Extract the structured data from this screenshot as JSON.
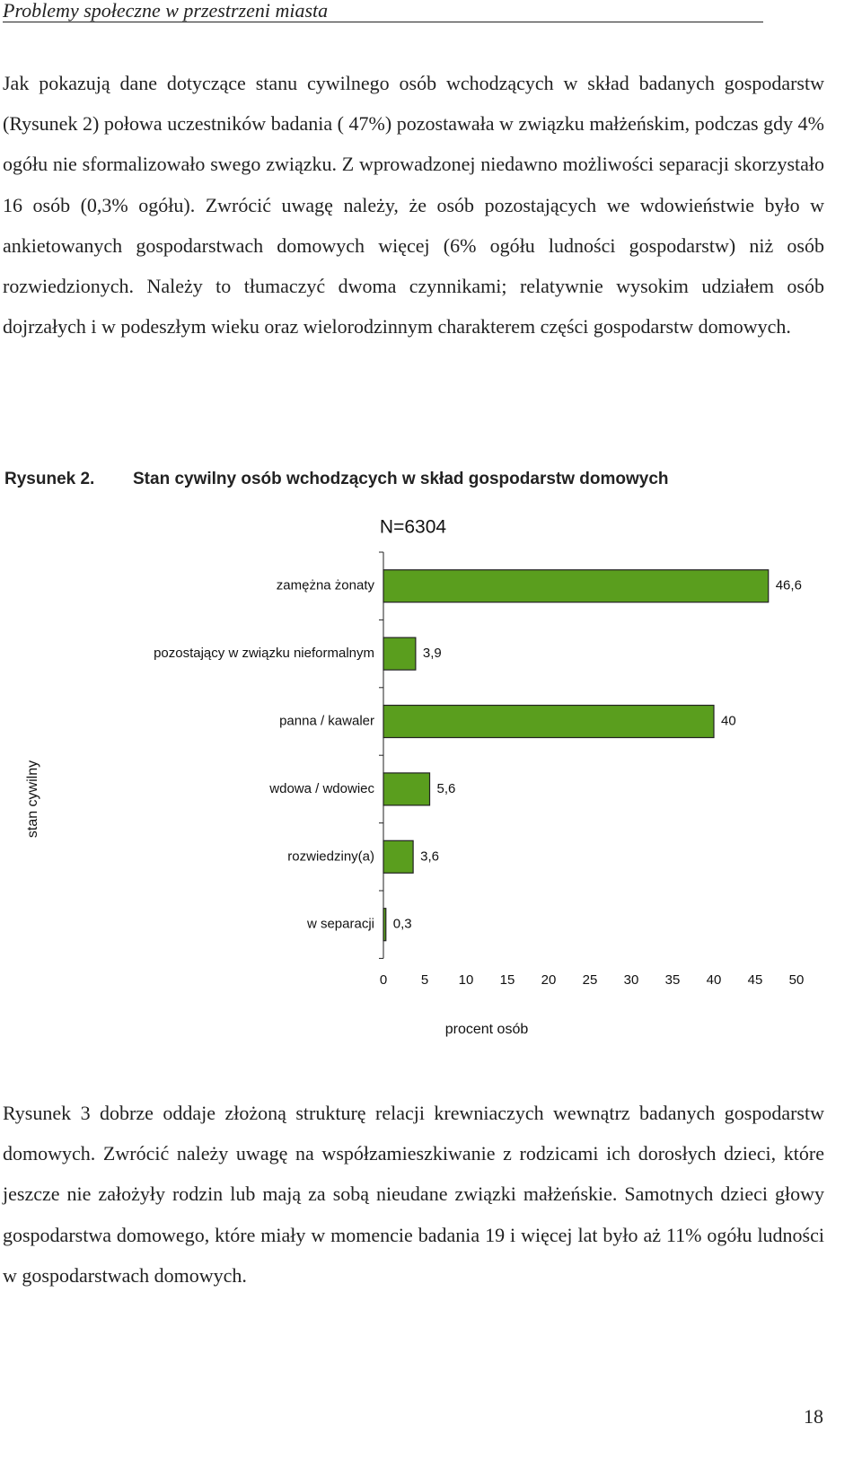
{
  "header": "Problemy społeczne w przestrzeni miasta",
  "paragraphs": [
    "Jak pokazują dane dotyczące stanu cywilnego osób wchodzących w skład badanych gospodarstw (Rysunek 2) połowa uczestników badania ( 47%) pozostawała w związku małżeńskim, podczas gdy 4% ogółu nie sformalizowało swego związku. Z wprowadzonej niedawno możliwości separacji skorzystało 16 osób (0,3% ogółu). Zwrócić uwagę należy, że osób pozostających we wdowieństwie było w ankietowanych gospodarstwach domowych więcej (6% ogółu ludności gospodarstw) niż osób rozwiedzionych. Należy to tłumaczyć dwoma czynnikami; relatywnie wysokim udziałem osób dojrzałych i w podeszłym wieku oraz wielorodzinnym charakterem części gospodarstw domowych.",
    "Rysunek 3 dobrze oddaje złożoną strukturę relacji krewniaczych wewnątrz badanych gospodarstw domowych. Zwrócić należy uwagę na współzamieszkiwanie z rodzicami ich dorosłych dzieci, które jeszcze nie założyły rodzin lub mają za sobą nieudane związki małżeńskie. Samotnych dzieci głowy gospodarstwa domowego, które miały w momencie badania 19 i więcej lat było aż 11% ogółu ludności w gospodarstwach domowych."
  ],
  "figure": {
    "label": "Rysunek 2.",
    "caption": "Stan cywilny osób wchodzących w skład gospodarstw domowych"
  },
  "chart_data": {
    "type": "bar",
    "orientation": "horizontal",
    "title": "N=6304",
    "x_label": "procent osób",
    "y_label": "stan cywilny",
    "categories": [
      "zamężna żonaty",
      "pozostający w związku nieformalnym",
      "panna / kawaler",
      "wdowa / wdowiec",
      "rozwiedziny(a)",
      "w separacji"
    ],
    "values": [
      46.6,
      3.9,
      40,
      5.6,
      3.6,
      0.3
    ],
    "value_labels": [
      "46,6",
      "3,9",
      "40",
      "5,6",
      "3,6",
      "0,3"
    ],
    "color": "#5a9e1e",
    "xlim": [
      0,
      50
    ],
    "xticks": [
      0,
      5,
      10,
      15,
      20,
      25,
      30,
      35,
      40,
      45,
      50
    ],
    "grid": false
  },
  "page_number": "18"
}
